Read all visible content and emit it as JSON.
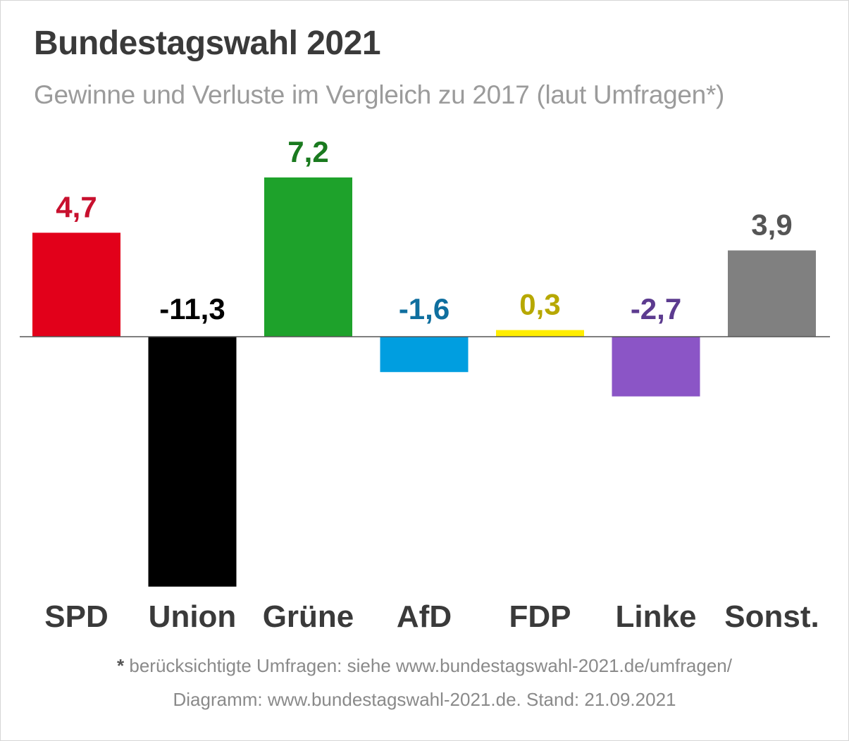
{
  "header": {
    "title": "Bundestagswahl 2021",
    "subtitle": "Gewinne und Verluste im Vergleich zu 2017 (laut Umfragen*)"
  },
  "footer": {
    "star": "*",
    "line1": "berücksichtigte Umfragen: siehe www.bundestagswahl-2021.de/umfragen/",
    "line2": "Diagramm: www.bundestagswahl-2021.de. Stand: 21.09.2021"
  },
  "chart_data": {
    "type": "bar",
    "title": "Bundestagswahl 2021",
    "subtitle": "Gewinne und Verluste im Vergleich zu 2017 (laut Umfragen*)",
    "categories": [
      "SPD",
      "Union",
      "Grüne",
      "AfD",
      "FDP",
      "Linke",
      "Sonst."
    ],
    "values": [
      4.7,
      -11.3,
      7.2,
      -1.6,
      0.3,
      -2.7,
      3.9
    ],
    "value_labels": [
      "4,7",
      "-11,3",
      "7,2",
      "-1,6",
      "0,3",
      "-2,7",
      "3,9"
    ],
    "bar_colors": [
      "#e2001a",
      "#000000",
      "#1ea22b",
      "#009ee0",
      "#ffed00",
      "#8b55c6",
      "#808080"
    ],
    "label_colors": [
      "#c8102e",
      "#000000",
      "#1a7a1f",
      "#0f6f9f",
      "#b7a800",
      "#5c3b8f",
      "#555555"
    ],
    "xlabel": "",
    "ylabel": "",
    "grid": false,
    "legend": "none"
  }
}
